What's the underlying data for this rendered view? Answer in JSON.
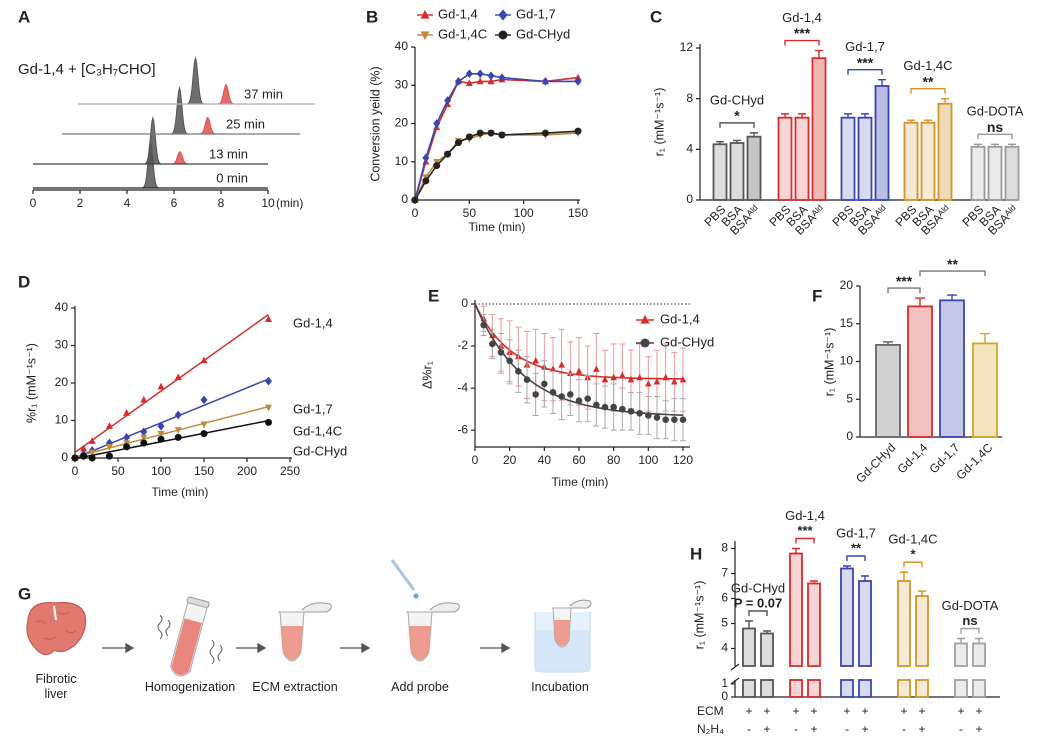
{
  "chart_data": [
    {
      "panel": "A",
      "type": "chromatogram",
      "title": "Gd-1,4 + [C₃H₇CHO]",
      "xlim": [
        0,
        10
      ],
      "xticks": [
        0,
        2,
        4,
        6,
        8,
        10
      ],
      "xlabel": "(min)",
      "peak_colors": [
        "#555555",
        "#e05050"
      ],
      "series": [
        {
          "name": "0 min",
          "color": "#222222",
          "x": [
            5.0
          ],
          "values": [
            1.0
          ]
        },
        {
          "name": "13 min",
          "color": "#444444",
          "x": [
            5.1,
            6.25
          ],
          "values": [
            1.0,
            0.27
          ]
        },
        {
          "name": "25 min",
          "color": "#777777",
          "x": [
            5.0,
            6.2
          ],
          "values": [
            1.0,
            0.36
          ]
        },
        {
          "name": "37 min",
          "color": "#aaaaaa",
          "x": [
            5.0,
            6.3
          ],
          "values": [
            1.0,
            0.42
          ]
        }
      ]
    },
    {
      "panel": "B",
      "type": "line",
      "xlabel": "Time (min)",
      "ylabel": "Conversion yeild (%)",
      "xlim": [
        0,
        150
      ],
      "xticks": [
        0,
        50,
        100,
        150
      ],
      "ylim": [
        0,
        40
      ],
      "yticks": [
        0,
        10,
        20,
        30,
        40
      ],
      "x": [
        0,
        10,
        20,
        30,
        40,
        50,
        60,
        70,
        80,
        120,
        150
      ],
      "series": [
        {
          "name": "Gd-1,4",
          "color": "#d62d2d",
          "marker": "triangle",
          "values": [
            0,
            10,
            19,
            25,
            31,
            30.5,
            31,
            31,
            31.5,
            31,
            32
          ]
        },
        {
          "name": "Gd-1,7",
          "color": "#3a46b0",
          "marker": "diamond",
          "values": [
            0,
            11,
            20,
            26,
            31,
            33,
            33,
            32.5,
            32,
            31,
            31
          ]
        },
        {
          "name": "Gd-1,4C",
          "color": "#c08a3e",
          "marker": "triangle-down",
          "values": [
            0,
            6,
            10,
            12,
            15.5,
            16,
            17,
            17.5,
            17,
            17,
            17.5
          ]
        },
        {
          "name": "Gd-CHyd",
          "color": "#222222",
          "marker": "circle",
          "values": [
            0,
            5,
            9,
            12,
            15,
            16.5,
            17.5,
            17.5,
            17,
            17.5,
            18
          ]
        }
      ]
    },
    {
      "panel": "C",
      "type": "grouped_bar",
      "ylabel": "r₁ (mM⁻¹s⁻¹)",
      "ylim": [
        0,
        12
      ],
      "yticks": [
        0,
        4,
        8,
        12
      ],
      "categories": [
        "PBS",
        "BSA",
        "BSAᴬˡᵈ"
      ],
      "series": [
        {
          "name": "Gd-CHyd",
          "color": "#555555",
          "values": [
            4.4,
            4.5,
            5.0
          ],
          "errors": [
            0.2,
            0.2,
            0.3
          ],
          "significance": "*"
        },
        {
          "name": "Gd-1,4",
          "color": "#d62d2d",
          "values": [
            6.5,
            6.5,
            11.2
          ],
          "errors": [
            0.3,
            0.3,
            0.6
          ],
          "significance": "***"
        },
        {
          "name": "Gd-1,7",
          "color": "#3a46b0",
          "values": [
            6.5,
            6.5,
            9.0
          ],
          "errors": [
            0.3,
            0.3,
            0.5
          ],
          "significance": "***"
        },
        {
          "name": "Gd-1,4C",
          "color": "#d4952a",
          "values": [
            6.1,
            6.1,
            7.6
          ],
          "errors": [
            0.2,
            0.2,
            0.4
          ],
          "significance": "**"
        },
        {
          "name": "Gd-DOTA",
          "color": "#9a9a9a",
          "values": [
            4.2,
            4.2,
            4.2
          ],
          "errors": [
            0.2,
            0.2,
            0.2
          ],
          "significance": "ns"
        }
      ]
    },
    {
      "panel": "D",
      "type": "scatter",
      "xlabel": "Time (min)",
      "ylabel": "%r₁ (mM⁻¹s⁻¹)",
      "xlim": [
        0,
        250
      ],
      "xticks": [
        0,
        50,
        100,
        150,
        200,
        250
      ],
      "ylim": [
        0,
        40
      ],
      "yticks": [
        0,
        10,
        20,
        30,
        40
      ],
      "x": [
        0,
        10,
        20,
        40,
        60,
        80,
        100,
        120,
        150,
        225
      ],
      "series": [
        {
          "name": "Gd-1,4",
          "color": "#d62d2d",
          "marker": "triangle",
          "values": [
            0,
            2.5,
            4.5,
            8.5,
            12,
            15.5,
            19,
            21.5,
            26,
            37
          ]
        },
        {
          "name": "Gd-1,7",
          "color": "#3a46b0",
          "marker": "diamond",
          "values": [
            0,
            1,
            2,
            4,
            5.5,
            7,
            8.5,
            11.5,
            15.5,
            20.5
          ]
        },
        {
          "name": "Gd-1,4C",
          "color": "#c08a3e",
          "marker": "triangle-down",
          "values": [
            0,
            0.5,
            1.5,
            3,
            4,
            5.5,
            6.5,
            7.5,
            9,
            13.5
          ]
        },
        {
          "name": "Gd-CHyd",
          "color": "#111111",
          "marker": "circle",
          "values": [
            0,
            0.5,
            0,
            0.5,
            3,
            4,
            5,
            5.5,
            6.5,
            9.5
          ]
        }
      ]
    },
    {
      "panel": "E",
      "type": "scatter",
      "xlabel": "Time (min)",
      "ylabel": "Δ%r₁",
      "xlim": [
        0,
        120
      ],
      "xticks": [
        0,
        20,
        40,
        60,
        80,
        100,
        120
      ],
      "ylim": [
        -6.8,
        0
      ],
      "yticks": [
        0,
        -2,
        -4,
        -6
      ],
      "zero_line": true,
      "x": [
        5,
        10,
        15,
        20,
        25,
        30,
        35,
        40,
        45,
        50,
        55,
        60,
        65,
        70,
        75,
        80,
        85,
        90,
        95,
        100,
        105,
        110,
        115,
        120
      ],
      "series": [
        {
          "name": "Gd-1,4",
          "color": "#d62d2d",
          "error_color": "#e89a9a",
          "marker": "triangle",
          "values": [
            -0.7,
            -1.5,
            -2.0,
            -2.3,
            -2.5,
            -2.9,
            -2.7,
            -3.0,
            -3.1,
            -2.9,
            -3.3,
            -3.2,
            -3.5,
            -3.1,
            -3.6,
            -3.5,
            -3.4,
            -3.6,
            -3.5,
            -3.8,
            -3.7,
            -3.5,
            -3.7,
            -3.6
          ],
          "errors": [
            0.6,
            1.0,
            1.3,
            1.5,
            1.4,
            1.6,
            1.5,
            1.6,
            1.5,
            1.7,
            1.5,
            1.6,
            1.5,
            1.7,
            1.4,
            1.6,
            1.5,
            1.4,
            1.6,
            1.3,
            1.5,
            1.6,
            1.4,
            1.5
          ]
        },
        {
          "name": "Gd-CHyd",
          "color": "#444444",
          "error_color": "#aaaaaa",
          "marker": "circle",
          "values": [
            -1.0,
            -1.9,
            -2.3,
            -2.7,
            -3.2,
            -3.6,
            -4.3,
            -3.8,
            -4.2,
            -4.4,
            -4.3,
            -4.6,
            -4.5,
            -4.8,
            -4.9,
            -4.9,
            -5.0,
            -5.1,
            -5.2,
            -5.3,
            -5.4,
            -5.5,
            -5.5,
            -5.5
          ],
          "errors": [
            0.5,
            0.7,
            0.9,
            1.0,
            1.0,
            1.1,
            1.0,
            1.1,
            1.0,
            1.1,
            1.0,
            1.0,
            1.1,
            1.0,
            1.0,
            1.1,
            1.0,
            0.9,
            1.0,
            0.9,
            1.0,
            0.9,
            1.0,
            1.0
          ]
        }
      ]
    },
    {
      "panel": "F",
      "type": "bar",
      "ylabel": "r₁ (mM⁻¹s⁻¹)",
      "ylim": [
        0,
        20
      ],
      "yticks": [
        0,
        5,
        10,
        15,
        20
      ],
      "categories": [
        "Gd-CHyd",
        "Gd-1,4",
        "Gd-1,7",
        "Gd-1,4C"
      ],
      "values": [
        12.2,
        17.3,
        18.1,
        12.4
      ],
      "errors": [
        0.4,
        1.1,
        0.7,
        1.3
      ],
      "colors": [
        "#666666",
        "#d62d2d",
        "#3a46b0",
        "#d4a52a"
      ],
      "comparison_color": "#777777",
      "comparisons": [
        {
          "pair": [
            0,
            1
          ],
          "label": "***"
        },
        {
          "pair": [
            1,
            3
          ],
          "label": "**"
        }
      ]
    },
    {
      "panel": "H",
      "type": "grouped_bar",
      "ylabel": "r₁ (mM⁻¹s⁻¹)",
      "ylim": [
        3.3,
        8.3
      ],
      "yticks": [
        4,
        5,
        6,
        7,
        8
      ],
      "ylim_lower": [
        0,
        1.3
      ],
      "yticks_lower": [
        0,
        1
      ],
      "series": [
        {
          "name": "Gd-CHyd",
          "color": "#555555",
          "values": [
            4.8,
            4.6
          ],
          "errors": [
            0.3,
            0.1
          ],
          "significance": "P = 0.07"
        },
        {
          "name": "Gd-1,4",
          "color": "#d62d2d",
          "values": [
            7.8,
            6.6
          ],
          "errors": [
            0.2,
            0.1
          ],
          "significance": "***"
        },
        {
          "name": "Gd-1,7",
          "color": "#3a46b0",
          "values": [
            7.2,
            6.7
          ],
          "errors": [
            0.1,
            0.2
          ],
          "significance": "**"
        },
        {
          "name": "Gd-1,4C",
          "color": "#d4952a",
          "values": [
            6.7,
            6.1
          ],
          "errors": [
            0.35,
            0.2
          ],
          "significance": "*"
        },
        {
          "name": "Gd-DOTA",
          "color": "#a0a0a0",
          "values": [
            4.2,
            4.2
          ],
          "errors": [
            0.2,
            0.2
          ],
          "significance": "ns"
        }
      ],
      "rows": [
        {
          "name": "ECM",
          "values": [
            "+",
            "+",
            "+",
            "+",
            "+",
            "+",
            "+",
            "+",
            "+",
            "+"
          ]
        },
        {
          "name": "N₂H₄",
          "values": [
            "-",
            "+",
            "-",
            "+",
            "-",
            "+",
            "-",
            "+",
            "-",
            "+"
          ]
        }
      ]
    }
  ],
  "diagram": {
    "panel": "G",
    "steps": [
      "Fibrotic liver",
      "Homogenization",
      "ECM extraction",
      "Add probe",
      "Incubation"
    ]
  }
}
